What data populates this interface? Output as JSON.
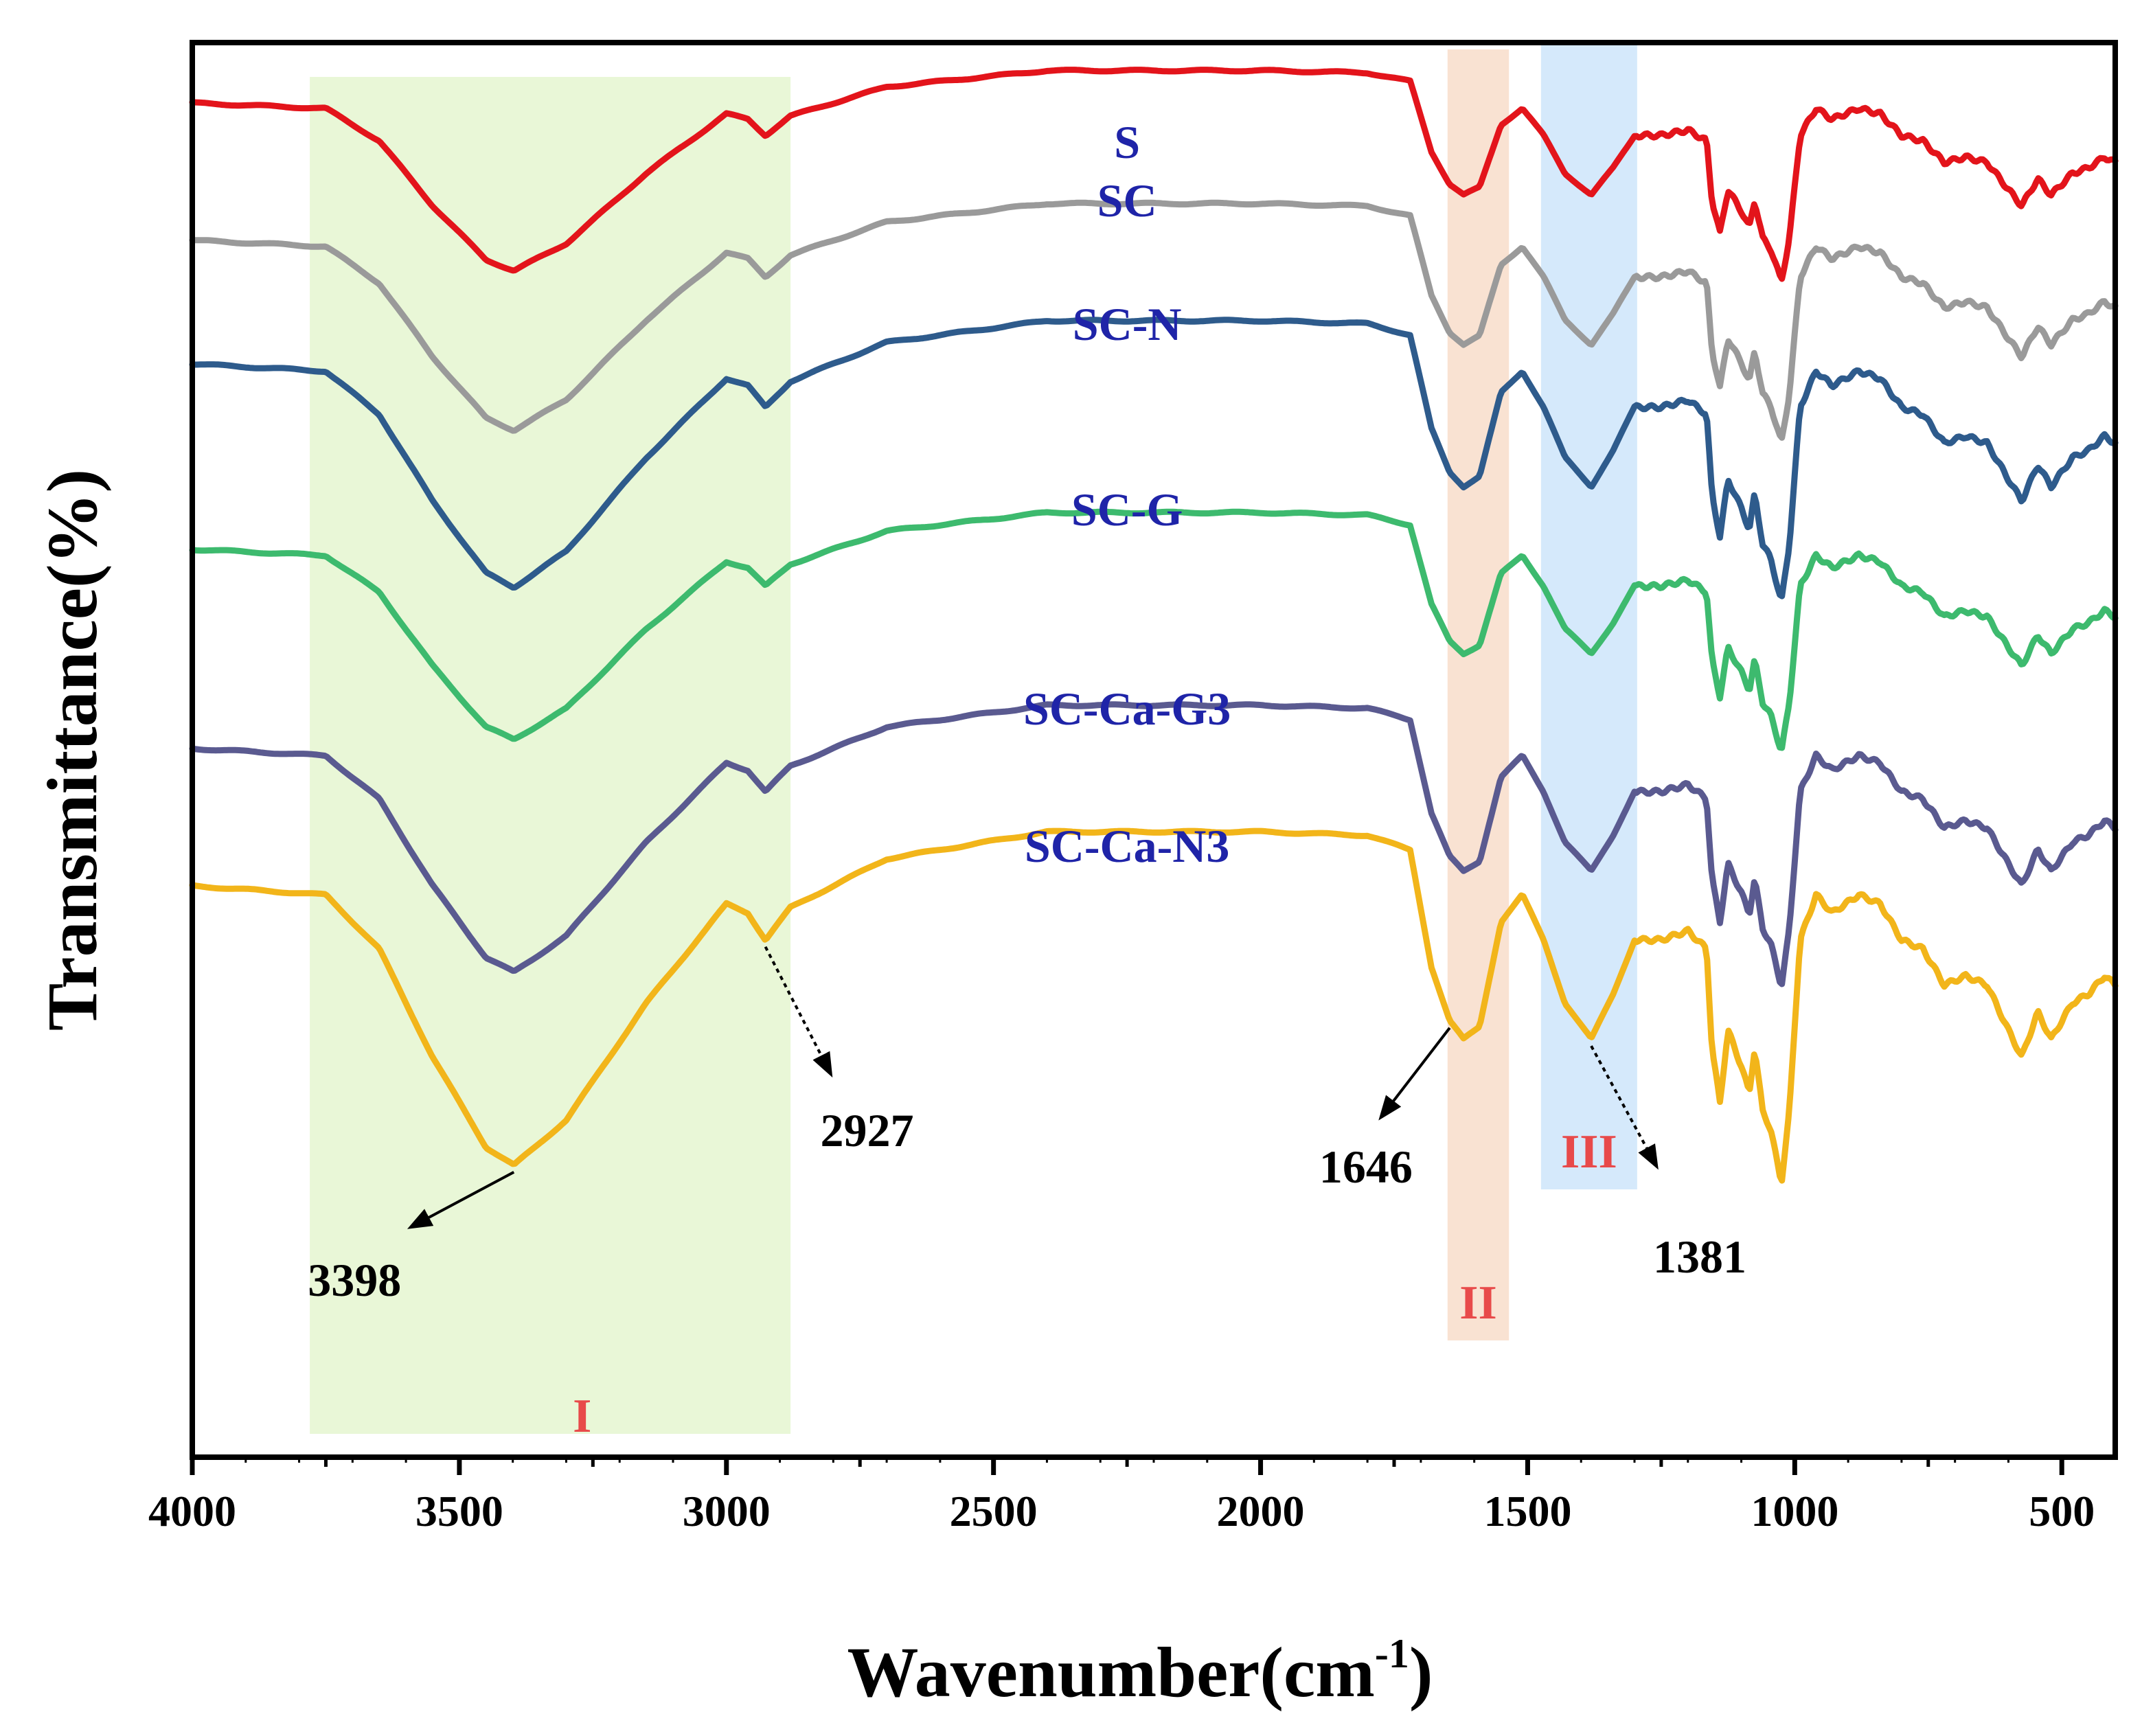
{
  "chart_data": {
    "type": "line",
    "title": "",
    "xlabel": "Wavenumber(cm",
    "xlabel_sup": "-1",
    "xlabel_close": ")",
    "ylabel": "Transmittance(%)",
    "xlim": [
      4000,
      400
    ],
    "x_reversed": true,
    "y_ticks_shown": false,
    "x_ticks": [
      4000,
      3500,
      3000,
      2500,
      2000,
      1500,
      1000,
      500
    ],
    "x_tick_labels": [
      "4000",
      "3500",
      "3000",
      "2500",
      "2000",
      "1500",
      "1000",
      "500"
    ],
    "regions": [
      {
        "label": "I",
        "from": 3780,
        "to": 2880,
        "color": "#e9f7d7"
      },
      {
        "label": "II",
        "from": 1650,
        "to": 1535,
        "color": "#f9e2d2"
      },
      {
        "label": "III",
        "from": 1475,
        "to": 1295,
        "color": "#d5e9fb"
      }
    ],
    "annotations": [
      {
        "text": "3398",
        "x": 3398,
        "series": "SC-Ca-N3"
      },
      {
        "text": "2927",
        "x": 2927,
        "series": "SC-Ca-N3"
      },
      {
        "text": "1646",
        "x": 1646,
        "series": "SC-Ca-N3"
      },
      {
        "text": "1381",
        "x": 1381,
        "series": "SC-Ca-N3"
      }
    ],
    "series": [
      {
        "name": "S",
        "color": "#e3141b",
        "offset": 0.0,
        "scale": 0.75
      },
      {
        "name": "SC",
        "color": "#9a9a9a",
        "offset": 1.0,
        "scale": 0.85
      },
      {
        "name": "SC-N",
        "color": "#2e5b8c",
        "offset": 1.9,
        "scale": 1.0
      },
      {
        "name": "SC-G",
        "color": "#3dba6e",
        "offset": 3.25,
        "scale": 0.85
      },
      {
        "name": "SC-Ca-G3",
        "color": "#5a5a90",
        "offset": 4.7,
        "scale": 1.0
      },
      {
        "name": "SC-Ca-N3",
        "color": "#f2b51a",
        "offset": 5.7,
        "scale": 1.25
      }
    ],
    "profile_x": [
      4000,
      3750,
      3650,
      3550,
      3450,
      3398,
      3300,
      3150,
      3000,
      2960,
      2927,
      2880,
      2700,
      2400,
      2000,
      1800,
      1720,
      1680,
      1646,
      1620,
      1590,
      1550,
      1510,
      1470,
      1430,
      1381,
      1340,
      1300,
      1250,
      1200,
      1165,
      1155,
      1140,
      1125,
      1100,
      1085,
      1075,
      1060,
      1045,
      1025,
      1010,
      990,
      960,
      930,
      880,
      840,
      800,
      760,
      720,
      680,
      640,
      600,
      575,
      545,
      520,
      480,
      450,
      420,
      400
    ],
    "profile_y": [
      0.0,
      0.05,
      0.35,
      0.95,
      1.45,
      1.55,
      1.3,
      0.65,
      0.1,
      0.15,
      0.3,
      0.12,
      -0.15,
      -0.3,
      -0.3,
      -0.28,
      -0.2,
      0.45,
      0.75,
      0.85,
      0.78,
      0.2,
      0.05,
      0.3,
      0.65,
      0.85,
      0.6,
      0.3,
      0.3,
      0.25,
      0.35,
      0.9,
      1.2,
      0.8,
      1.0,
      1.15,
      0.9,
      1.25,
      1.35,
      1.65,
      1.25,
      0.3,
      0.05,
      0.15,
      0.05,
      0.1,
      0.3,
      0.35,
      0.55,
      0.5,
      0.55,
      0.8,
      0.95,
      0.7,
      0.85,
      0.65,
      0.6,
      0.5,
      0.55
    ]
  }
}
